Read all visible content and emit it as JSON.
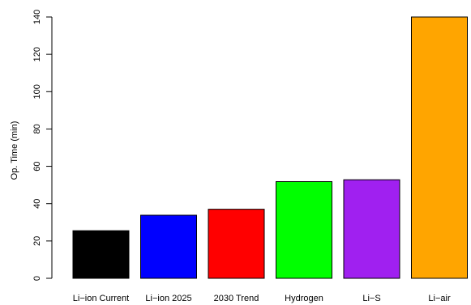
{
  "chart_data": {
    "type": "bar",
    "title": "",
    "xlabel": "",
    "ylabel": "Op. Time (min)",
    "categories": [
      "Li−ion Current",
      "Li−ion 2025",
      "2030 Trend",
      "Hydrogen",
      "Li−S",
      "Li−air"
    ],
    "values": [
      25.5,
      33.8,
      37,
      51.8,
      52.8,
      140
    ],
    "colors": [
      "#000000",
      "#0000FF",
      "#FF0000",
      "#00FF00",
      "#A020F0",
      "#FFA500"
    ],
    "ylim": [
      0,
      140
    ],
    "yticks": [
      0,
      20,
      40,
      60,
      80,
      100,
      120,
      140
    ],
    "grid": false,
    "legend": "none"
  }
}
